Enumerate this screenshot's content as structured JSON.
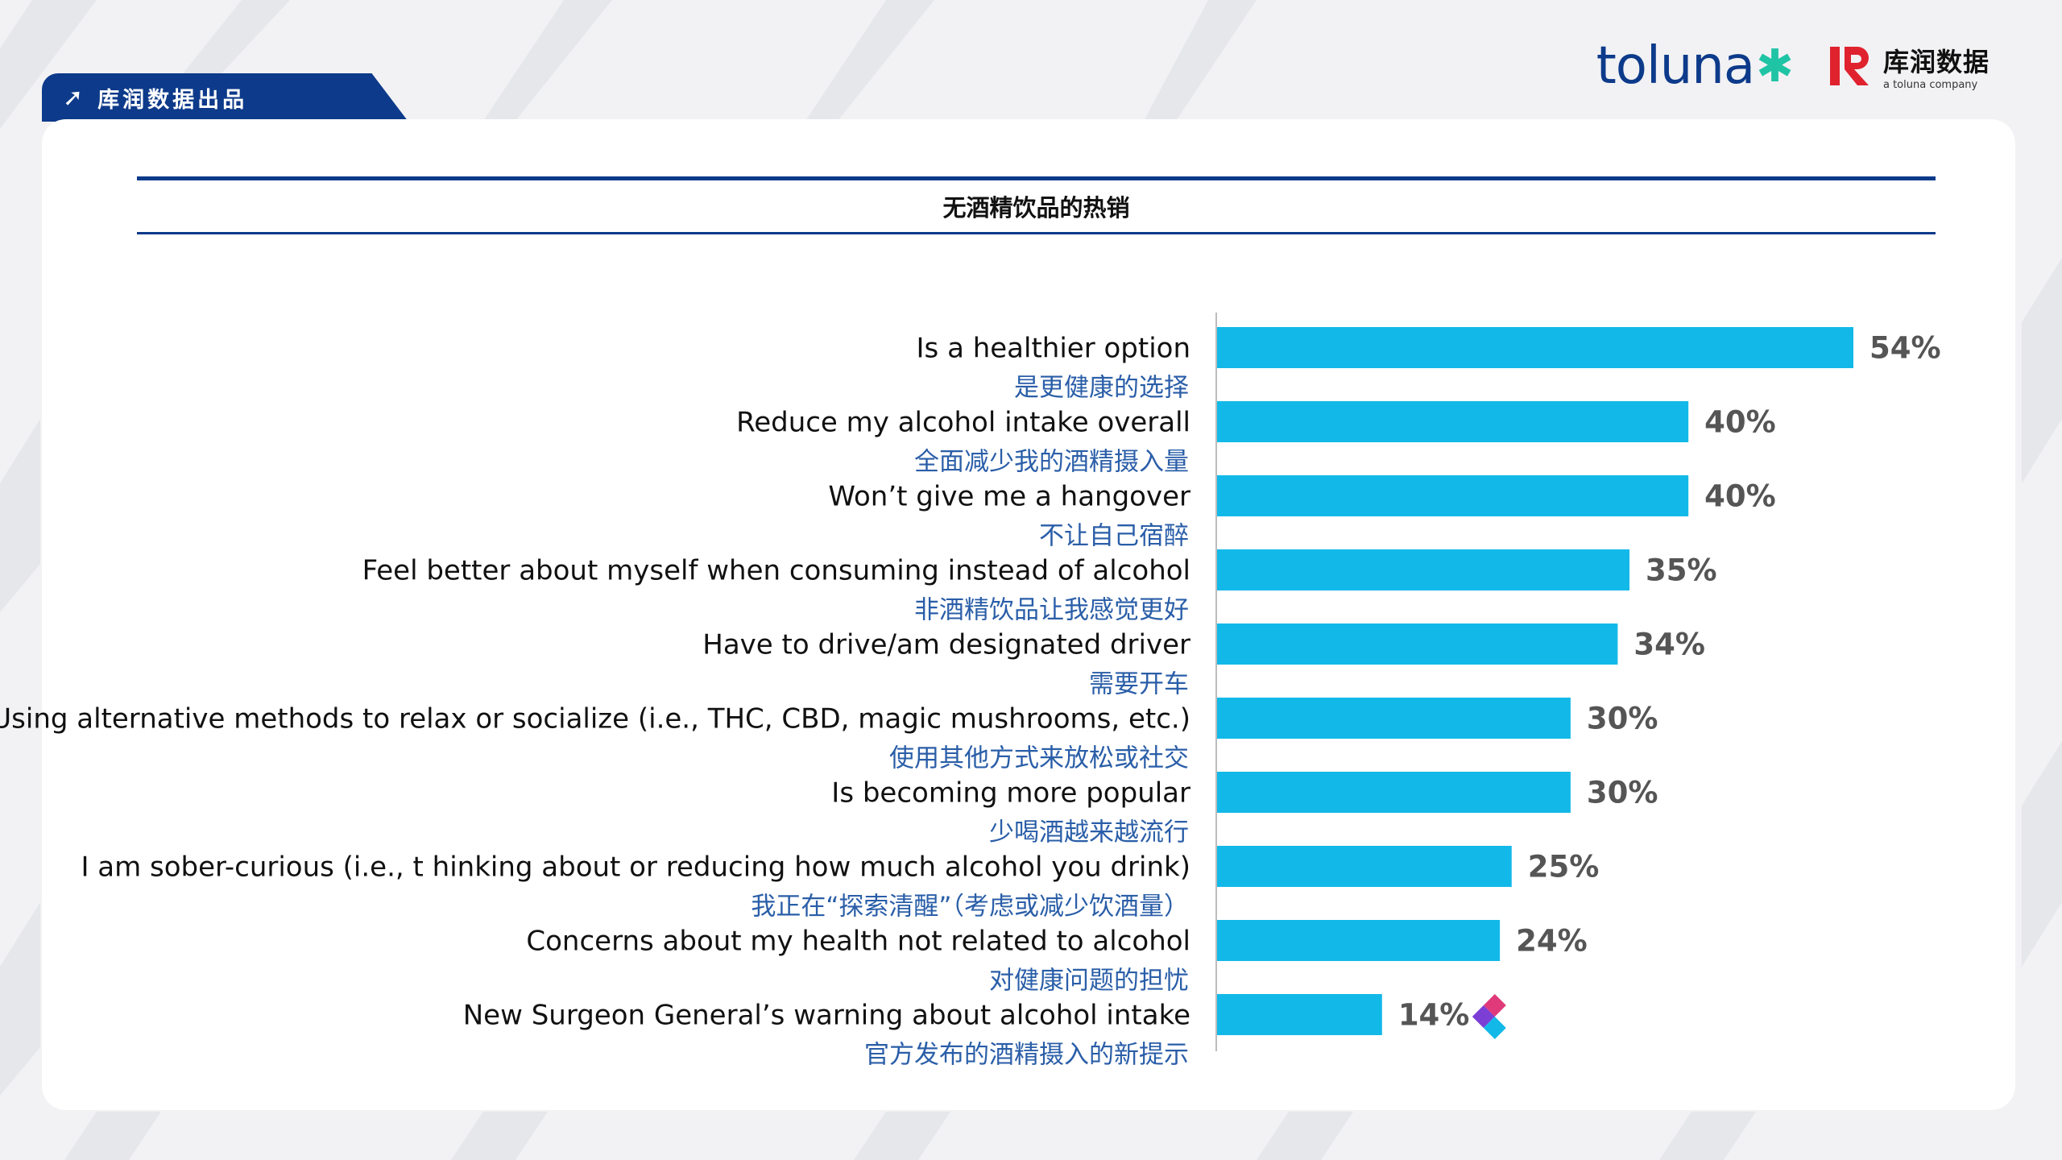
{
  "header": {
    "tab_label": "库润数据出品",
    "brand_toluna": "toluna",
    "brand_kr": "库润数据",
    "brand_kr_sub": "a toluna company"
  },
  "chart_data": {
    "type": "bar",
    "orientation": "horizontal",
    "title": "无酒精饮品的热销",
    "categories": [
      "Is a healthier option",
      "Reduce my alcohol intake overall",
      "Won’t give me a hangover",
      "Feel better about myself when consuming instead of alcohol",
      "Have to drive/am designated driver",
      "Using alternative methods to relax or socialize (i.e., THC, CBD, magic mushrooms, etc.)",
      "Is becoming more popular",
      "I am sober-curious (i.e., t hinking about or reducing how much alcohol you drink)",
      "Concerns about my health not related to alcohol",
      "New Surgeon General’s warning about alcohol intake"
    ],
    "categories_cn": [
      "是更健康的选择",
      "全面减少我的酒精摄入量",
      "不让自己宿醉",
      "非酒精饮品让我感觉更好",
      "需要开车",
      "使用其他方式来放松或社交",
      "少喝酒越来越流行",
      "我正在“探索清醒”（考虑或减少饮酒量）",
      "对健康问题的担忧",
      "官方发布的酒精摄入的新提示"
    ],
    "values": [
      54,
      40,
      40,
      35,
      34,
      30,
      30,
      25,
      24,
      14
    ],
    "value_labels": [
      "54%",
      "40%",
      "40%",
      "35%",
      "34%",
      "30%",
      "30%",
      "25%",
      "24%",
      "14%"
    ],
    "bar_color": "#12b9e8",
    "xlim": [
      0,
      54
    ],
    "grid": false,
    "legend": "none"
  }
}
